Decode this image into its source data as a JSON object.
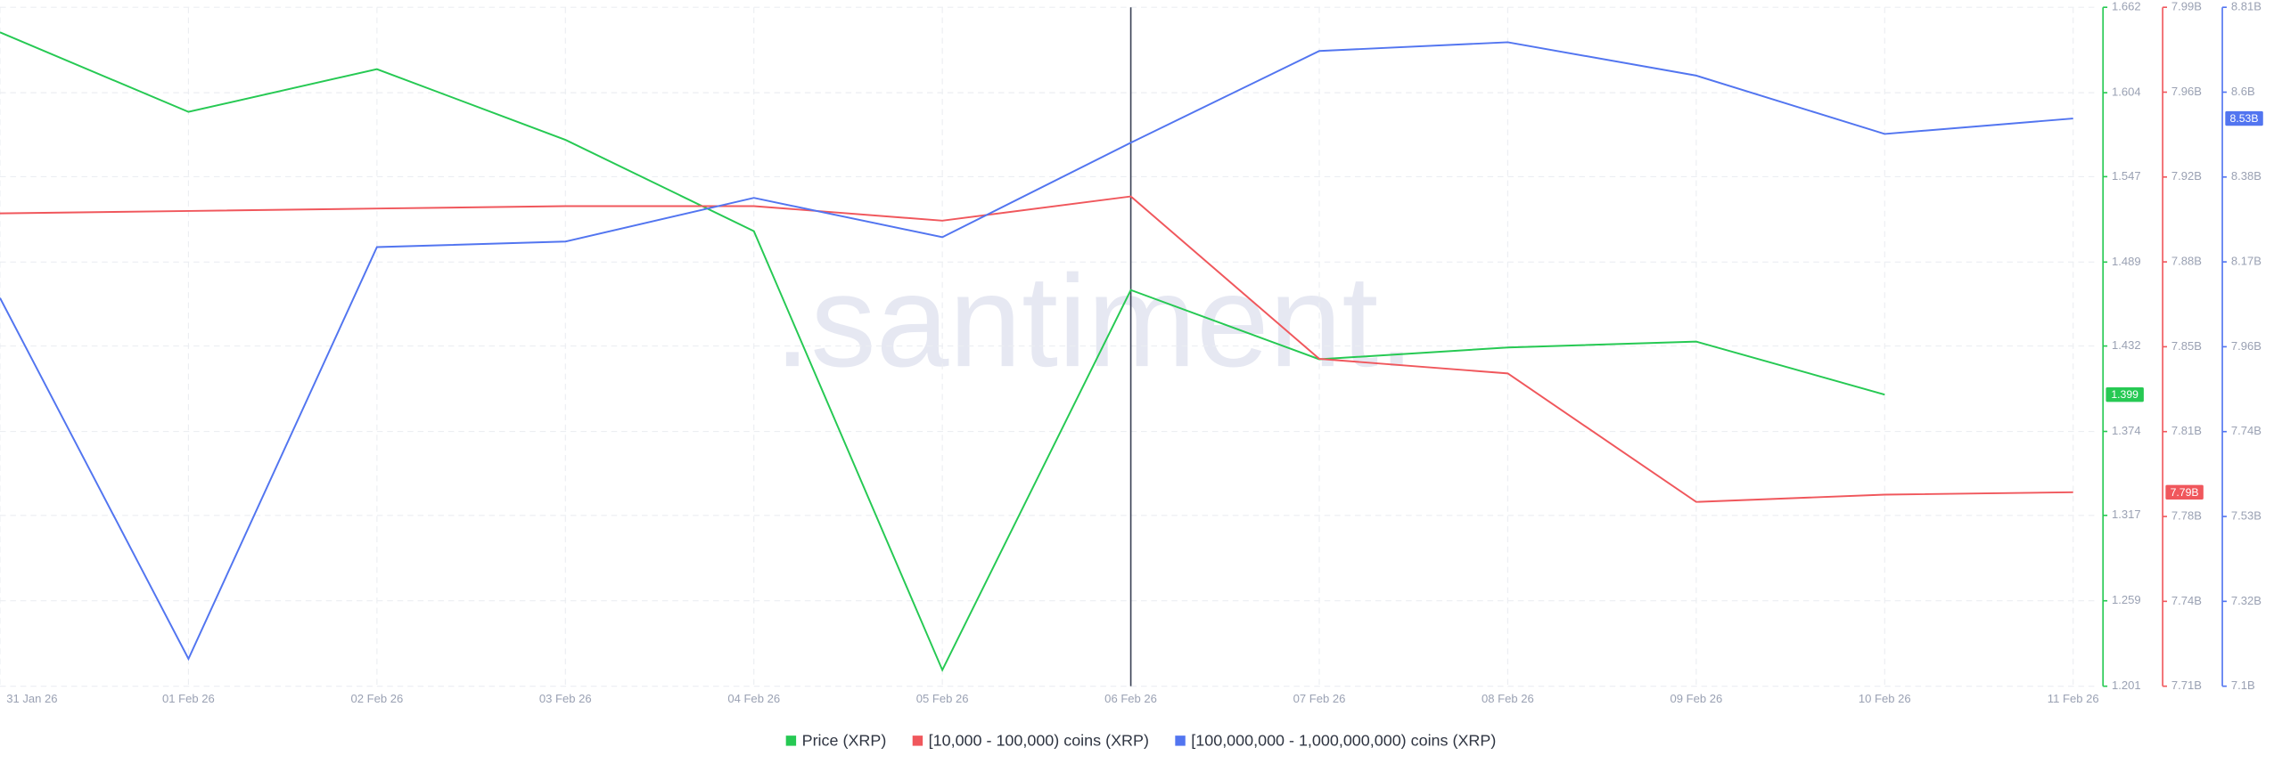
{
  "chart_data": {
    "type": "line",
    "watermark": ".santiment.",
    "categories": [
      "31 Jan 26",
      "01 Feb 26",
      "02 Feb 26",
      "03 Feb 26",
      "04 Feb 26",
      "05 Feb 26",
      "06 Feb 26",
      "07 Feb 26",
      "08 Feb 26",
      "09 Feb 26",
      "10 Feb 26",
      "11 Feb 26"
    ],
    "grid": true,
    "ylim": [
      1.201,
      1.662
    ],
    "yticks": [
      1.201,
      1.259,
      1.317,
      1.374,
      1.432,
      1.489,
      1.547,
      1.604,
      1.662
    ],
    "y2lim": [
      7710000000,
      7990000000
    ],
    "y2ticks": [
      {
        "value": 7710000000,
        "label": "7.71B"
      },
      {
        "value": 7745000000,
        "label": "7.74B"
      },
      {
        "value": 7780000000,
        "label": "7.78B"
      },
      {
        "value": 7815000000,
        "label": "7.81B"
      },
      {
        "value": 7850000000,
        "label": "7.85B"
      },
      {
        "value": 7885000000,
        "label": "7.88B"
      },
      {
        "value": 7920000000,
        "label": "7.92B"
      },
      {
        "value": 7955000000,
        "label": "7.96B"
      },
      {
        "value": 7990000000,
        "label": "7.99B"
      }
    ],
    "y3lim": [
      7100000000,
      8810000000
    ],
    "y3ticks": [
      {
        "value": 7100000000,
        "label": "7.1B"
      },
      {
        "value": 7313750000,
        "label": "7.32B"
      },
      {
        "value": 7527500000,
        "label": "7.53B"
      },
      {
        "value": 7741250000,
        "label": "7.74B"
      },
      {
        "value": 7955000000,
        "label": "7.96B"
      },
      {
        "value": 8168750000,
        "label": "8.17B"
      },
      {
        "value": 8382500000,
        "label": "8.38B"
      },
      {
        "value": 8596250000,
        "label": "8.6B"
      },
      {
        "value": 8810000000,
        "label": "8.81B"
      }
    ],
    "series": [
      {
        "name": "Price (XRP)",
        "color": "#26c953",
        "axis": "y",
        "current_label": "1.399",
        "values": [
          1.645,
          1.591,
          1.62,
          1.572,
          1.51,
          1.212,
          1.47,
          1.423,
          1.431,
          1.435,
          1.399,
          null
        ]
      },
      {
        "name": "[10,000 - 100,000) coins (XRP)",
        "color": "#f0575c",
        "axis": "y2",
        "current_label": "7.79B",
        "values": [
          7905000000,
          7906000000,
          7907000000,
          7908000000,
          7908000000,
          7902000000,
          7912000000,
          7845000000,
          7839000000,
          7786000000,
          7789000000,
          7790000000
        ]
      },
      {
        "name": "[100,000,000 - 1,000,000,000) coins (XRP)",
        "color": "#5275f0",
        "axis": "y3",
        "current_label": "8.53B",
        "values": [
          8078000000,
          7169000000,
          8206000000,
          8220000000,
          8330000000,
          8231000000,
          8469000000,
          8700000000,
          8722000000,
          8638000000,
          8491000000,
          8530000000
        ]
      }
    ]
  }
}
